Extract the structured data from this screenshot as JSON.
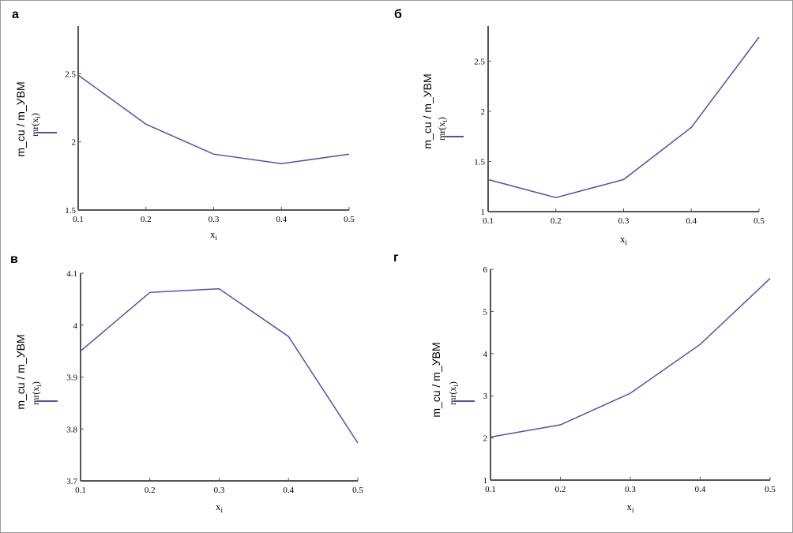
{
  "chart_data": [
    {
      "type": "line",
      "panel": "а",
      "ylabel": "m_cu / m_УВМ",
      "xlabel": {
        "base": "x",
        "sub": "i"
      },
      "legend": {
        "fn": "mr",
        "arg": "x",
        "sub": "i"
      },
      "x": [
        0.1,
        0.2,
        0.3,
        0.4,
        0.5
      ],
      "y": [
        2.49,
        2.13,
        1.91,
        1.84,
        1.91
      ],
      "xlim": [
        0.1,
        0.5
      ],
      "ylim": [
        1.5,
        2.85
      ],
      "xticks": [
        "0.1",
        "0.2",
        "0.3",
        "0.4",
        "0.5"
      ],
      "yticks": [
        {
          "v": 1.5,
          "t": "1.5"
        },
        {
          "v": 2,
          "t": "2"
        },
        {
          "v": 2.5,
          "t": "2.5"
        }
      ],
      "grid": false
    },
    {
      "type": "line",
      "panel": "б",
      "ylabel": "m_cu / m_УВМ",
      "xlabel": {
        "base": "x",
        "sub": "i"
      },
      "legend": {
        "fn": "mr",
        "arg": "x",
        "sub": "i"
      },
      "x": [
        0.1,
        0.2,
        0.3,
        0.4,
        0.5
      ],
      "y": [
        1.32,
        1.14,
        1.32,
        1.84,
        2.74
      ],
      "xlim": [
        0.1,
        0.5
      ],
      "ylim": [
        1.0,
        2.85
      ],
      "xticks": [
        "0.1",
        "0.2",
        "0.3",
        "0.4",
        "0.5"
      ],
      "yticks": [
        {
          "v": 1,
          "t": "1"
        },
        {
          "v": 1.5,
          "t": "1.5"
        },
        {
          "v": 2,
          "t": "2"
        },
        {
          "v": 2.5,
          "t": "2.5"
        }
      ],
      "grid": false
    },
    {
      "type": "line",
      "panel": "в",
      "ylabel": "m_cu / m_УВМ",
      "xlabel": {
        "base": "x",
        "sub": "i"
      },
      "legend": {
        "fn": "mr",
        "arg": "x",
        "sub": "i"
      },
      "x": [
        0.1,
        0.2,
        0.3,
        0.4,
        0.5
      ],
      "y": [
        3.95,
        4.063,
        4.07,
        3.978,
        3.773
      ],
      "xlim": [
        0.1,
        0.5
      ],
      "ylim": [
        3.7,
        4.1
      ],
      "xticks": [
        "0.1",
        "0.2",
        "0.3",
        "0.4",
        "0.5"
      ],
      "yticks": [
        {
          "v": 3.7,
          "t": "3.7"
        },
        {
          "v": 3.8,
          "t": "3.8"
        },
        {
          "v": 3.9,
          "t": "3.9"
        },
        {
          "v": 4,
          "t": "4"
        },
        {
          "v": 4.1,
          "t": "4.1"
        }
      ],
      "grid": false
    },
    {
      "type": "line",
      "panel": "г",
      "ylabel": "m_cu / m_УВМ",
      "xlabel": {
        "base": "x",
        "sub": "i"
      },
      "legend": {
        "fn": "mr",
        "arg": "x",
        "sub": "i"
      },
      "x": [
        0.1,
        0.2,
        0.3,
        0.4,
        0.5
      ],
      "y": [
        2.02,
        2.31,
        3.06,
        4.22,
        5.78
      ],
      "xlim": [
        0.1,
        0.5
      ],
      "ylim": [
        1,
        6
      ],
      "xticks": [
        "0.1",
        "0.2",
        "0.3",
        "0.4",
        "0.5"
      ],
      "yticks": [
        {
          "v": 1,
          "t": "1"
        },
        {
          "v": 2,
          "t": "2"
        },
        {
          "v": 3,
          "t": "3"
        },
        {
          "v": 4,
          "t": "4"
        },
        {
          "v": 5,
          "t": "5"
        },
        {
          "v": 6,
          "t": "6"
        }
      ],
      "grid": false
    }
  ],
  "colors": {
    "series": "#4a55a8",
    "axis": "#555555"
  }
}
